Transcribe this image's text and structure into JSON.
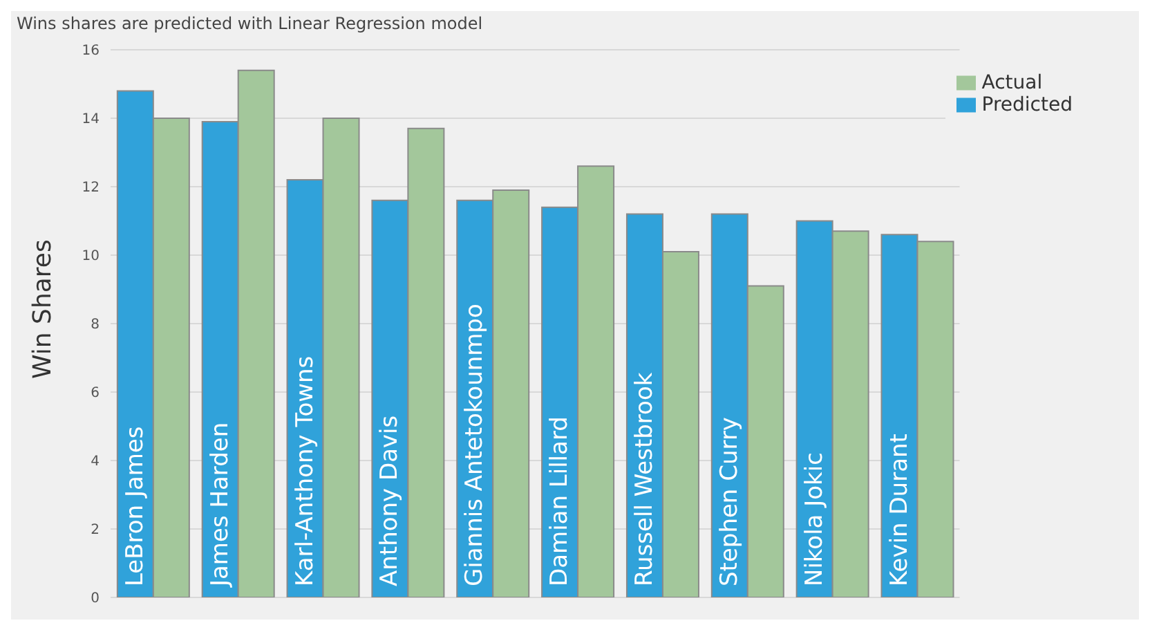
{
  "chart_data": {
    "type": "bar",
    "title": "Wins shares are predicted with Linear Regression model",
    "ylabel": "Win Shares",
    "categories": [
      "LeBron James",
      "James Harden",
      "Karl-Anthony Towns",
      "Anthony Davis",
      "Giannis Antetokounmpo",
      "Damian Lillard",
      "Russell Westbrook",
      "Stephen Curry",
      "Nikola Jokic",
      "Kevin Durant"
    ],
    "series": [
      {
        "name": "Predicted",
        "color": "#30a2da",
        "values": [
          14.8,
          13.9,
          12.2,
          11.6,
          11.6,
          11.4,
          11.2,
          11.2,
          11.0,
          10.6
        ]
      },
      {
        "name": "Actual",
        "color": "#a3c79b",
        "values": [
          14.0,
          15.4,
          14.0,
          13.7,
          11.9,
          12.6,
          10.1,
          9.1,
          10.7,
          10.4
        ]
      }
    ],
    "ylim": [
      0,
      16
    ],
    "yticks": [
      0,
      2,
      4,
      6,
      8,
      10,
      12,
      14,
      16
    ],
    "grid": "y",
    "legend": "top right"
  }
}
